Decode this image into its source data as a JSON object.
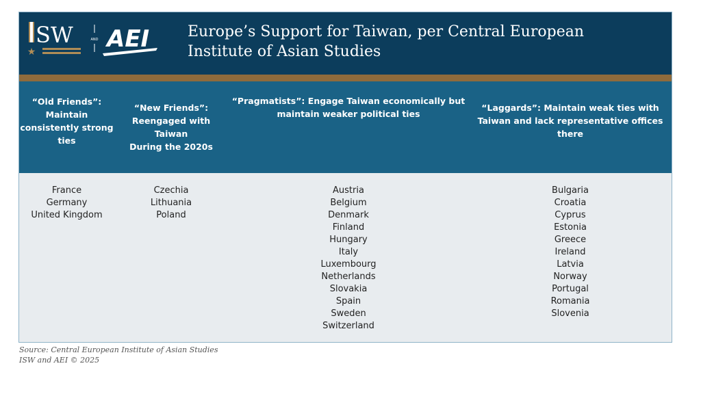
{
  "header": {
    "logo_text": "ISW AND AEI",
    "title_line1": "Europe’s Support for Taiwan, per Central European",
    "title_line2": "Institute of Asian Studies"
  },
  "columns": [
    {
      "heading": [
        "“Old Friends”:",
        "Maintain",
        "consistently strong",
        "ties"
      ],
      "countries": [
        "France",
        "Germany",
        "United Kingdom"
      ]
    },
    {
      "heading": [
        "“New Friends”:",
        "Reengaged with Taiwan",
        "During the 2020s"
      ],
      "countries": [
        "Czechia",
        "Lithuania",
        "Poland"
      ]
    },
    {
      "heading": [
        "“Pragmatists”: Engage Taiwan economically but",
        "maintain weaker political ties"
      ],
      "countries": [
        "Austria",
        "Belgium",
        "Denmark",
        "Finland",
        "Hungary",
        "Italy",
        "Luxembourg",
        "Netherlands",
        "Slovakia",
        "Spain",
        "Sweden",
        "Switzerland"
      ]
    },
    {
      "heading": [
        "“Laggards”: Maintain weak ties with",
        "Taiwan and lack representative offices",
        "there"
      ],
      "countries": [
        "Bulgaria",
        "Croatia",
        "Cyprus",
        "Estonia",
        "Greece",
        "Ireland",
        "Latvia",
        "Norway",
        "Portugal",
        "Romania",
        "Slovenia"
      ]
    }
  ],
  "footer": {
    "source": "Source: Central European Institute of Asian Studies",
    "copyright": "ISW and AEI © 2025"
  },
  "colors": {
    "banner": "#0c3d5c",
    "stripe": "#8f6b3c",
    "column_header": "#1a6286",
    "body": "#e8ecef"
  }
}
